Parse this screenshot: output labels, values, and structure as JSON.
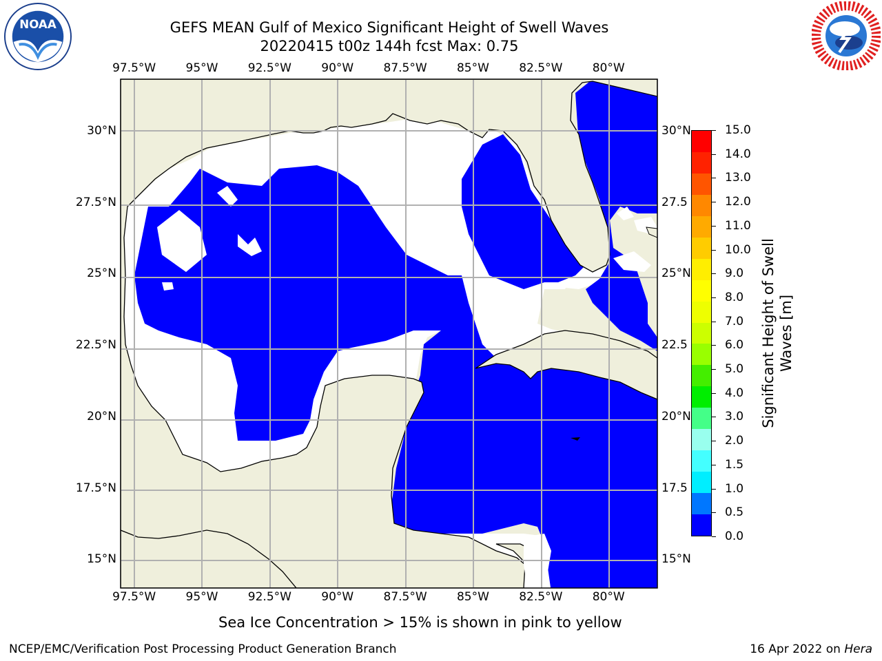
{
  "title_line1": "GEFS MEAN Gulf of Mexico Significant Height of Swell Waves",
  "title_line2": "20220415 t00z 144h fcst   Max: 0.75",
  "lon_ticks": [
    "97.5°W",
    "95°W",
    "92.5°W",
    "90°W",
    "87.5°W",
    "85°W",
    "82.5°W",
    "80°W"
  ],
  "lon_values": [
    -97.5,
    -95,
    -92.5,
    -90,
    -87.5,
    -85,
    -82.5,
    -80
  ],
  "lat_ticks_left": [
    "30°N",
    "27.5°N",
    "25°N",
    "22.5°N",
    "20°N",
    "17.5°N",
    "15°N"
  ],
  "lat_ticks_right": [
    "30°N",
    "27.5",
    "25°N",
    "22.5",
    "20°N",
    "17.5",
    "15°N"
  ],
  "lat_values": [
    30,
    27.5,
    25,
    22.5,
    20,
    17.5,
    15
  ],
  "extent": {
    "lon": [
      -98,
      -78.2
    ],
    "lat": [
      14,
      31.8
    ]
  },
  "colorbar": {
    "title_line1": "Significant Height of Swell",
    "title_line2": "Waves [m]",
    "labels": [
      "15.0",
      "14.0",
      "13.0",
      "12.0",
      "11.0",
      "10.0",
      "9.0",
      "8.0",
      "7.0",
      "6.0",
      "5.0",
      "4.0",
      "3.0",
      "2.0",
      "1.5",
      "1.0",
      "0.5",
      "0.0"
    ],
    "colors_top_to_bottom": [
      "#ff0000",
      "#ff2200",
      "#ff5500",
      "#ff8800",
      "#ffaa00",
      "#ffcc00",
      "#ffee00",
      "#ffff00",
      "#eeff00",
      "#ccff00",
      "#99ff00",
      "#44ee00",
      "#00ee00",
      "#44ff88",
      "#99ffee",
      "#44ffff",
      "#00eeff",
      "#0077ff",
      "#0000ff"
    ]
  },
  "colors": {
    "land": "#efefdc",
    "ocean_low": "#0000ff",
    "ocean_mid": "#0077ff",
    "nodata": "#ffffff",
    "grid": "#b0b0b0"
  },
  "caption": "Sea Ice Concentration > 15% is shown in pink to yellow",
  "footer_left": "NCEP/EMC/Verification Post Processing Product Generation Branch",
  "footer_date": "16 Apr 2022 on ",
  "footer_host": "Hera",
  "logos": {
    "left": "noaa-logo",
    "left_text": "NOAA",
    "right": "nws-logo"
  }
}
